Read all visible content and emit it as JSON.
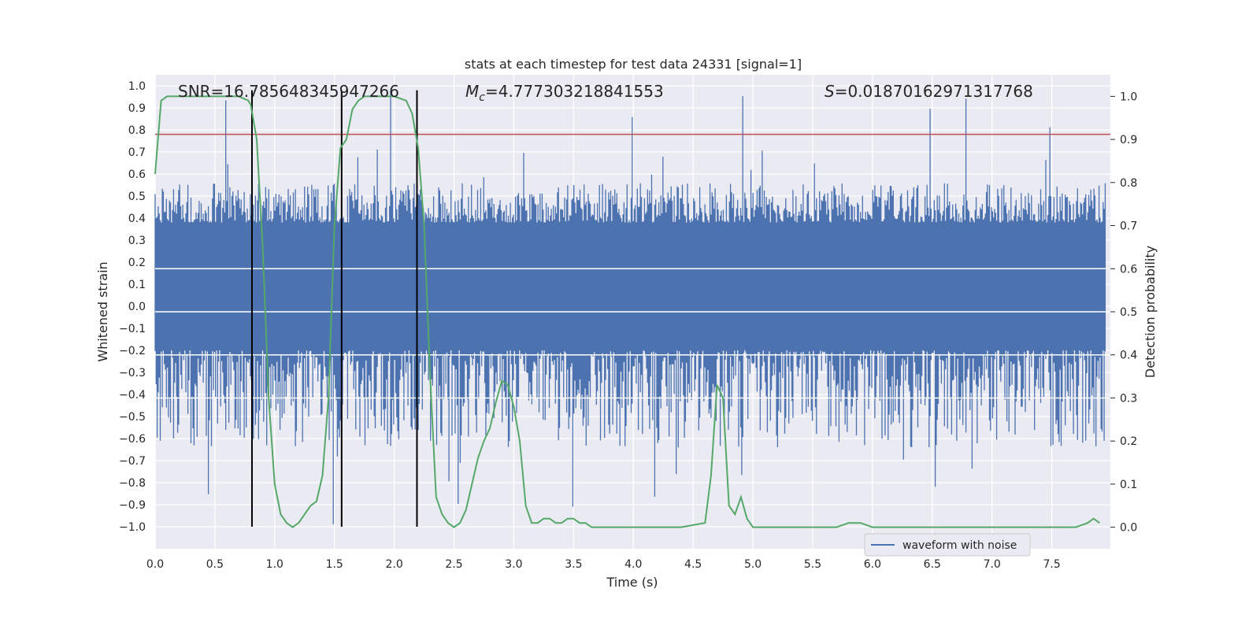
{
  "chart_data": {
    "type": "line",
    "title": "stats at each timestep for test data 24331 [signal=1]",
    "xlabel": "Time (s)",
    "ylabel": "Whitened strain",
    "y2label": "Detection probability",
    "xlim": [
      0.0,
      7.99
    ],
    "ylim": [
      -1.1,
      1.05
    ],
    "y2lim": [
      -0.05,
      1.05
    ],
    "xticks": [
      "0.0",
      "0.5",
      "1.0",
      "1.5",
      "2.0",
      "2.5",
      "3.0",
      "3.5",
      "4.0",
      "4.5",
      "5.0",
      "5.5",
      "6.0",
      "6.5",
      "7.0",
      "7.5"
    ],
    "yticks": [
      "1.0",
      "0.9",
      "0.8",
      "0.7",
      "0.6",
      "0.5",
      "0.4",
      "0.3",
      "0.2",
      "0.1",
      "0.0",
      "-0.1",
      "-0.2",
      "-0.3",
      "-0.4",
      "-0.5",
      "-0.6",
      "-0.7",
      "-0.8",
      "-0.9",
      "-1.0"
    ],
    "y2ticks": [
      "1.0",
      "0.9",
      "0.8",
      "0.7",
      "0.6",
      "0.5",
      "0.4",
      "0.3",
      "0.2",
      "0.1",
      "0.0"
    ],
    "grid": true,
    "legend_placement": "lower-right",
    "colors": {
      "background": "#eaeaf2",
      "grid": "#ffffff",
      "waveform": "#4c72b0",
      "probability": "#55a868",
      "threshold": "#c44e52",
      "markers": "#000000"
    },
    "annotations": {
      "snr": "SNR=16.785648345947266",
      "mc_symbol": "M",
      "mc_subscript": "c",
      "mc_value": "=4.777303218841553",
      "s_symbol": "S",
      "s_value": "=0.01870162971317768"
    },
    "threshold_y": 0.78,
    "vertical_markers_x": [
      0.81,
      1.56,
      2.19
    ],
    "series": [
      {
        "name": "waveform with noise",
        "kind": "noise_envelope",
        "x_range": [
          0.0,
          7.95
        ],
        "core_band": [
          -0.2,
          0.38
        ],
        "typical_upper": 0.55,
        "typical_lower": -0.62,
        "max_peak": 0.98,
        "min_trough": -1.0
      },
      {
        "kind": "probability",
        "axis": "right",
        "x": [
          0.0,
          0.05,
          0.1,
          0.2,
          0.3,
          0.4,
          0.5,
          0.6,
          0.7,
          0.78,
          0.8,
          0.85,
          0.9,
          0.95,
          1.0,
          1.05,
          1.1,
          1.15,
          1.2,
          1.25,
          1.3,
          1.35,
          1.4,
          1.45,
          1.5,
          1.55,
          1.6,
          1.65,
          1.7,
          1.75,
          1.8,
          1.85,
          1.9,
          2.0,
          2.1,
          2.15,
          2.2,
          2.25,
          2.3,
          2.35,
          2.4,
          2.45,
          2.5,
          2.55,
          2.6,
          2.65,
          2.7,
          2.75,
          2.8,
          2.85,
          2.9,
          2.95,
          3.0,
          3.05,
          3.1,
          3.15,
          3.2,
          3.25,
          3.3,
          3.35,
          3.4,
          3.45,
          3.5,
          3.55,
          3.6,
          3.65,
          3.7,
          3.75,
          3.8,
          3.85,
          3.9,
          4.0,
          4.2,
          4.4,
          4.6,
          4.65,
          4.7,
          4.75,
          4.8,
          4.85,
          4.9,
          4.95,
          5.0,
          5.1,
          5.3,
          5.5,
          5.7,
          5.8,
          5.9,
          6.0,
          6.2,
          6.5,
          6.8,
          7.0,
          7.3,
          7.5,
          7.7,
          7.8,
          7.85,
          7.9
        ],
        "values": [
          0.82,
          0.99,
          1.0,
          1.0,
          1.0,
          1.0,
          1.0,
          1.0,
          1.0,
          0.99,
          0.98,
          0.9,
          0.65,
          0.3,
          0.1,
          0.03,
          0.01,
          0.0,
          0.01,
          0.03,
          0.05,
          0.06,
          0.12,
          0.3,
          0.7,
          0.88,
          0.9,
          0.97,
          0.99,
          1.0,
          1.0,
          1.0,
          1.0,
          1.0,
          0.99,
          0.96,
          0.88,
          0.7,
          0.35,
          0.07,
          0.03,
          0.01,
          0.0,
          0.01,
          0.04,
          0.1,
          0.16,
          0.2,
          0.23,
          0.29,
          0.34,
          0.33,
          0.28,
          0.2,
          0.05,
          0.01,
          0.01,
          0.02,
          0.02,
          0.01,
          0.01,
          0.02,
          0.02,
          0.01,
          0.01,
          0.0,
          0.0,
          0.0,
          0.0,
          0.0,
          0.0,
          0.0,
          0.0,
          0.0,
          0.01,
          0.12,
          0.33,
          0.3,
          0.05,
          0.03,
          0.07,
          0.02,
          0.0,
          0.0,
          0.0,
          0.0,
          0.0,
          0.01,
          0.01,
          0.0,
          0.0,
          0.0,
          0.0,
          0.0,
          0.0,
          0.0,
          0.0,
          0.01,
          0.02,
          0.01
        ]
      }
    ]
  }
}
